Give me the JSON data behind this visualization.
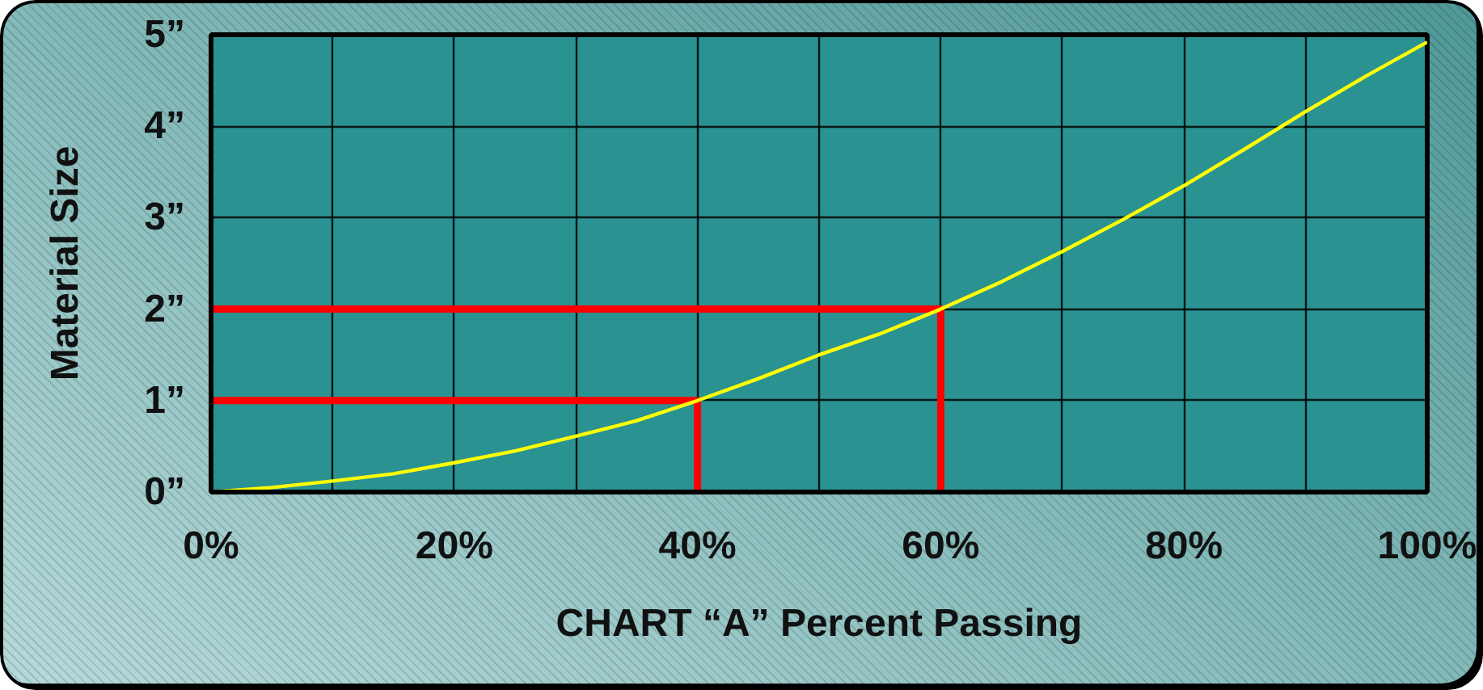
{
  "chart_data": {
    "type": "line",
    "xlabel": "CHART “A” Percent Passing",
    "ylabel": "Material Size",
    "xlim": [
      0,
      100
    ],
    "ylim": [
      0,
      5
    ],
    "xticks": [
      {
        "value": 0,
        "label": "0%"
      },
      {
        "value": 10,
        "label": null
      },
      {
        "value": 20,
        "label": "20%"
      },
      {
        "value": 30,
        "label": null
      },
      {
        "value": 40,
        "label": "40%"
      },
      {
        "value": 50,
        "label": null
      },
      {
        "value": 60,
        "label": "60%"
      },
      {
        "value": 70,
        "label": null
      },
      {
        "value": 80,
        "label": "80%"
      },
      {
        "value": 90,
        "label": null
      },
      {
        "value": 100,
        "label": "100%"
      }
    ],
    "yticks": [
      {
        "value": 0,
        "label": "0”"
      },
      {
        "value": 1,
        "label": "1”"
      },
      {
        "value": 2,
        "label": "2”"
      },
      {
        "value": 3,
        "label": "3”"
      },
      {
        "value": 4,
        "label": "4”"
      },
      {
        "value": 5,
        "label": "5”"
      }
    ],
    "grid": true,
    "series": [
      {
        "color": "#ff0000",
        "x": [
          0,
          40,
          40
        ],
        "values": [
          1,
          1,
          0
        ]
      },
      {
        "color": "#ff0000",
        "x": [
          0,
          60,
          60
        ],
        "values": [
          2,
          2,
          0
        ]
      },
      {
        "color": "#ffff00",
        "x": [
          0,
          5,
          10,
          15,
          20,
          25,
          30,
          35,
          40,
          45,
          50,
          55,
          60,
          65,
          70,
          75,
          80,
          85,
          90,
          95,
          100
        ],
        "values": [
          0,
          0.05,
          0.12,
          0.2,
          0.32,
          0.45,
          0.61,
          0.78,
          1.0,
          1.24,
          1.5,
          1.73,
          2.0,
          2.3,
          2.63,
          2.98,
          3.35,
          3.75,
          4.16,
          4.55,
          4.92
        ]
      }
    ]
  }
}
